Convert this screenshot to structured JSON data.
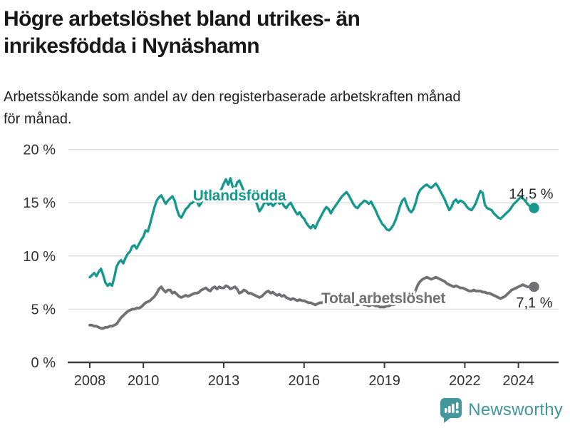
{
  "header": {
    "title_lines": [
      "Högre arbetslöshet bland utrikes- än",
      "inrikesfödda i Nynäshamn"
    ],
    "subtitle_lines": [
      "Arbetssökande som andel av den registerbaserade arbetskraften månad",
      "för månad."
    ]
  },
  "colors": {
    "series_foreign": "#16998c",
    "series_total": "#717175",
    "axis_text": "#333333",
    "gridline": "#dcdcdc",
    "axis_line": "#3c3c3c",
    "value_label": "#26262b",
    "brand_teal": "#3f969b"
  },
  "chart_data": {
    "type": "line",
    "title": "Högre arbetslöshet bland utrikes- än inrikesfödda i Nynäshamn",
    "subtitle": "Arbetssökande som andel av den registerbaserade arbetskraften månad för månad.",
    "unit": "%",
    "x_start": {
      "year": 2008,
      "month": 1
    },
    "x_end": {
      "year": 2024,
      "month": 8
    },
    "x_frequency": "monthly",
    "ylim": [
      0,
      20
    ],
    "grid": true,
    "legend": "inline-labels",
    "y_ticks": [
      {
        "value": 20,
        "label": "20 %"
      },
      {
        "value": 15,
        "label": "15 %"
      },
      {
        "value": 10,
        "label": "10 %"
      },
      {
        "value": 5,
        "label": "5 %"
      },
      {
        "value": 0,
        "label": "0 %"
      }
    ],
    "x_ticks": [
      {
        "year": 2008,
        "label": "2008"
      },
      {
        "year": 2010,
        "label": "2010"
      },
      {
        "year": 2013,
        "label": "2013"
      },
      {
        "year": 2016,
        "label": "2016"
      },
      {
        "year": 2019,
        "label": "2019"
      },
      {
        "year": 2022,
        "label": "2022"
      },
      {
        "year": 2024,
        "label": "2024"
      }
    ],
    "series": [
      {
        "name": "Utlandsfödda",
        "color": "#16998c",
        "end_label": "14,5 %",
        "end_value": 14.5,
        "values": [
          8.0,
          8.2,
          8.4,
          8.1,
          8.5,
          8.8,
          8.2,
          7.5,
          7.2,
          7.4,
          7.2,
          8.0,
          9.0,
          9.4,
          9.6,
          9.3,
          9.8,
          10.2,
          10.4,
          10.9,
          11.0,
          10.7,
          11.1,
          11.5,
          11.8,
          12.4,
          12.3,
          13.0,
          13.8,
          14.6,
          15.2,
          15.5,
          15.7,
          15.3,
          14.9,
          15.2,
          15.4,
          15.6,
          15.2,
          14.4,
          13.8,
          13.6,
          14.0,
          14.4,
          14.6,
          14.9,
          15.0,
          15.2,
          15.1,
          14.7,
          15.0,
          15.6,
          15.3,
          15.7,
          15.5,
          16.1,
          15.8,
          16.0,
          15.9,
          16.3,
          16.8,
          17.2,
          16.7,
          17.3,
          16.5,
          16.3,
          16.9,
          17.1,
          16.6,
          16.1,
          15.8,
          16.2,
          16.2,
          15.7,
          15.3,
          14.8,
          14.2,
          14.5,
          14.9,
          15.1,
          14.8,
          15.0,
          14.7,
          14.9,
          15.2,
          14.9,
          15.1,
          14.7,
          14.5,
          14.8,
          15.0,
          14.6,
          14.2,
          13.9,
          14.1,
          13.7,
          13.5,
          13.1,
          12.8,
          12.6,
          12.9,
          12.6,
          13.1,
          13.5,
          13.9,
          14.3,
          14.6,
          14.4,
          14.0,
          14.4,
          14.7,
          15.0,
          15.3,
          15.6,
          15.8,
          16.0,
          15.7,
          15.3,
          14.9,
          14.6,
          14.5,
          14.8,
          15.0,
          15.2,
          15.1,
          14.9,
          15.1,
          14.7,
          14.3,
          13.8,
          13.4,
          13.0,
          12.8,
          12.5,
          12.4,
          12.6,
          12.9,
          13.4,
          14.0,
          14.7,
          15.2,
          15.4,
          14.8,
          14.3,
          14.1,
          14.4,
          15.0,
          15.8,
          16.2,
          16.4,
          16.6,
          16.7,
          16.5,
          16.4,
          16.6,
          16.8,
          16.5,
          16.1,
          15.7,
          15.3,
          14.8,
          14.3,
          14.6,
          15.1,
          15.3,
          15.0,
          15.2,
          15.1,
          14.9,
          14.6,
          14.4,
          14.3,
          14.6,
          15.0,
          15.6,
          16.1,
          15.9,
          14.8,
          14.5,
          14.4,
          14.3,
          14.0,
          13.8,
          13.6,
          13.5,
          13.7,
          13.9,
          14.1,
          14.3,
          14.6,
          14.9,
          15.1,
          15.3,
          15.5,
          15.4,
          15.2,
          14.9,
          14.7,
          14.6,
          14.5
        ]
      },
      {
        "name": "Total arbetslöshet",
        "color": "#717175",
        "end_label": "7,1 %",
        "end_value": 7.1,
        "values": [
          3.5,
          3.5,
          3.4,
          3.4,
          3.3,
          3.2,
          3.2,
          3.3,
          3.3,
          3.4,
          3.4,
          3.5,
          3.6,
          3.9,
          4.2,
          4.4,
          4.6,
          4.8,
          4.9,
          5.0,
          5.0,
          5.1,
          5.1,
          5.2,
          5.4,
          5.6,
          5.7,
          5.8,
          6.0,
          6.2,
          6.5,
          6.9,
          7.1,
          6.8,
          6.6,
          6.8,
          6.8,
          6.5,
          6.6,
          6.4,
          6.2,
          6.1,
          6.2,
          6.3,
          6.2,
          6.3,
          6.4,
          6.5,
          6.5,
          6.6,
          6.8,
          6.9,
          7.0,
          6.8,
          6.7,
          7.0,
          7.1,
          6.9,
          7.1,
          7.0,
          7.0,
          7.2,
          7.1,
          6.9,
          7.0,
          7.1,
          6.9,
          6.5,
          6.6,
          6.8,
          6.7,
          6.5,
          6.5,
          6.4,
          6.3,
          6.2,
          6.1,
          6.2,
          6.4,
          6.6,
          6.7,
          6.5,
          6.6,
          6.4,
          6.3,
          6.4,
          6.2,
          6.3,
          6.1,
          6.0,
          5.9,
          6.0,
          5.9,
          5.8,
          5.9,
          5.8,
          5.8,
          5.7,
          5.6,
          5.6,
          5.5,
          5.4,
          5.5,
          5.6,
          5.6,
          5.7,
          5.6,
          5.6,
          5.6,
          5.7,
          5.7,
          5.6,
          5.6,
          5.5,
          5.6,
          5.7,
          5.6,
          5.5,
          5.5,
          5.4,
          5.4,
          5.5,
          5.5,
          5.4,
          5.4,
          5.3,
          5.4,
          5.4,
          5.3,
          5.3,
          5.2,
          5.2,
          5.2,
          5.3,
          5.3,
          5.4,
          5.4,
          5.5,
          5.6,
          5.7,
          5.8,
          5.9,
          5.9,
          6.0,
          6.1,
          6.3,
          6.8,
          7.3,
          7.6,
          7.8,
          7.9,
          8.0,
          7.9,
          7.8,
          7.9,
          8.0,
          7.9,
          7.8,
          7.7,
          7.6,
          7.4,
          7.3,
          7.2,
          7.1,
          7.2,
          7.1,
          7.0,
          7.0,
          6.9,
          6.8,
          6.7,
          6.7,
          6.8,
          6.7,
          6.7,
          6.7,
          6.6,
          6.6,
          6.5,
          6.5,
          6.4,
          6.3,
          6.2,
          6.1,
          6.0,
          6.1,
          6.2,
          6.4,
          6.6,
          6.8,
          6.9,
          7.0,
          7.1,
          7.2,
          7.3,
          7.2,
          7.1,
          7.1,
          7.2,
          7.1
        ]
      }
    ]
  },
  "footer": {
    "brand": "Newsworthy",
    "logo": "bar-chart-speech-bubble-icon"
  }
}
